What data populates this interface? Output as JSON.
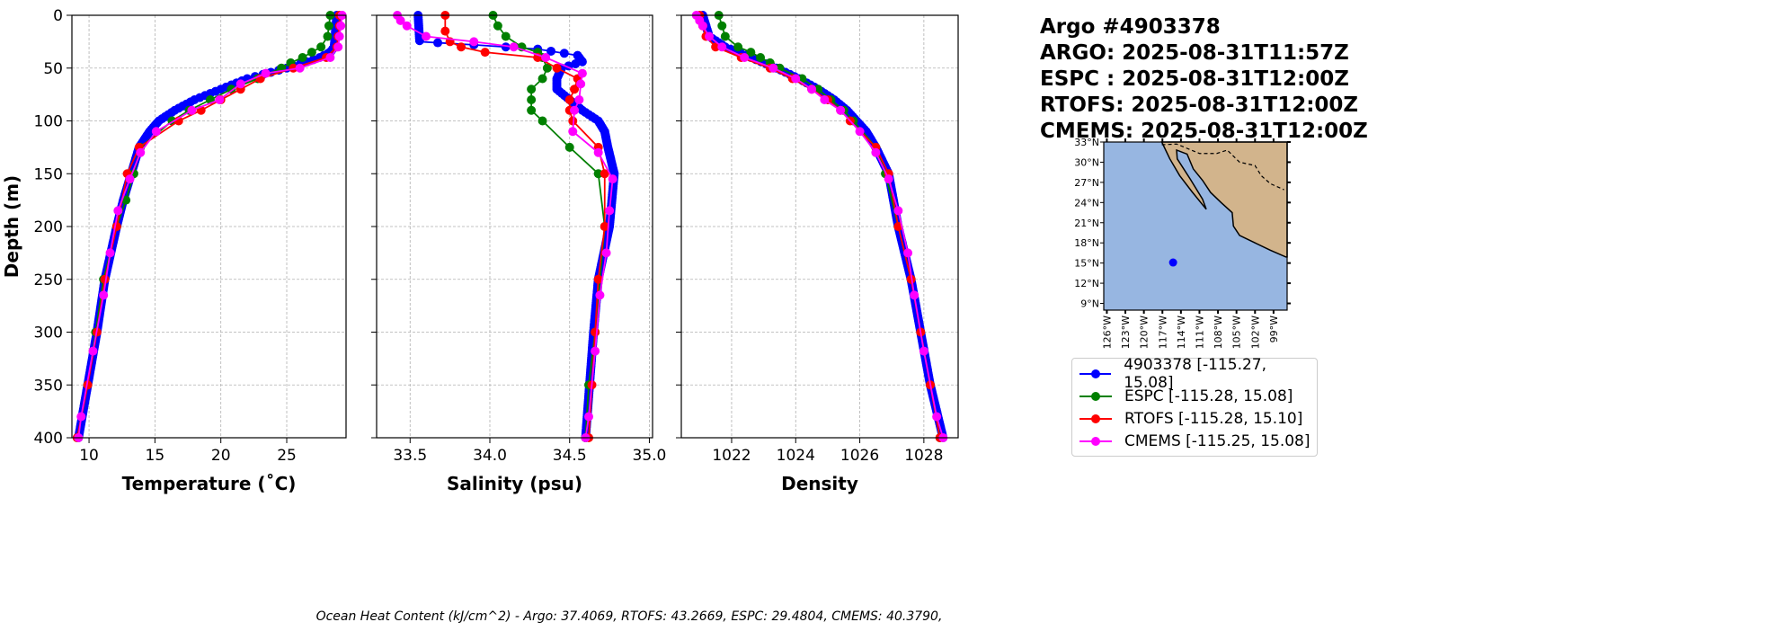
{
  "title_lines": [
    "Argo #4903378",
    "ARGO: 2025-08-31T11:57Z",
    "ESPC : 2025-08-31T12:00Z",
    "RTOFS: 2025-08-31T12:00Z",
    "CMEMS: 2025-08-31T12:00Z"
  ],
  "ohc_text": "Ocean Heat Content (kJ/cm^2) - Argo: 37.4069,  RTOFS: 43.2669,  ESPC: 29.4804,  CMEMS: 40.3790,",
  "legend": [
    {
      "label": "4903378 [-115.27, 15.08]",
      "color": "#0000ff"
    },
    {
      "label": "ESPC [-115.28, 15.08]",
      "color": "#008000"
    },
    {
      "label": "RTOFS [-115.28, 15.10]",
      "color": "#ff0000"
    },
    {
      "label": "CMEMS [-115.25, 15.08]",
      "color": "#ff00ff"
    }
  ],
  "map": {
    "lat_ticks": [
      "33°N",
      "30°N",
      "27°N",
      "24°N",
      "21°N",
      "18°N",
      "15°N",
      "12°N",
      "9°N"
    ],
    "lon_ticks": [
      "126°W",
      "123°W",
      "120°W",
      "117°W",
      "114°W",
      "111°W",
      "108°W",
      "105°W",
      "102°W",
      "99°W"
    ],
    "float_lon": -115.27,
    "float_lat": 15.08,
    "ocean_color": "#97b6e1",
    "land_color": "#d2b48c"
  },
  "chart_data": [
    {
      "type": "line",
      "xlabel": "Temperature (˚C)",
      "ylabel": "Depth (m)",
      "xlim": [
        8.7,
        29.5
      ],
      "ylim": [
        400,
        0
      ],
      "grid": true,
      "xticks": [
        "10",
        "15",
        "20",
        "25"
      ],
      "xtick_vals": [
        10,
        15,
        20,
        25
      ],
      "yticks": [
        "0",
        "50",
        "100",
        "150",
        "200",
        "250",
        "300",
        "350",
        "400"
      ],
      "series": [
        {
          "name": "Argo",
          "color": "#0000ff",
          "dense": true,
          "depth": [
            0,
            30,
            35,
            40,
            45,
            50,
            60,
            70,
            80,
            90,
            100,
            110,
            125,
            150,
            175,
            200,
            250,
            300,
            350,
            400
          ],
          "values": [
            28.8,
            28.6,
            28.3,
            27.5,
            26.3,
            25,
            22,
            20,
            18,
            16.5,
            15.3,
            14.6,
            13.8,
            13.2,
            12.6,
            12.1,
            11.2,
            10.6,
            9.9,
            9.2
          ]
        },
        {
          "name": "ESPC",
          "color": "#008000",
          "depth": [
            0,
            10,
            20,
            30,
            35,
            40,
            45,
            50,
            60,
            70,
            80,
            90,
            100,
            125,
            150,
            175,
            200,
            250,
            300,
            350,
            400
          ],
          "values": [
            28.3,
            28.2,
            28.1,
            27.6,
            26.9,
            26.2,
            25.3,
            24.6,
            22.8,
            20.8,
            19.2,
            17.6,
            16.3,
            13.9,
            13.4,
            12.8,
            12.1,
            11.1,
            10.5,
            9.9,
            9.1
          ]
        },
        {
          "name": "RTOFS",
          "color": "#ff0000",
          "depth": [
            0,
            10,
            20,
            30,
            40,
            50,
            60,
            70,
            80,
            90,
            100,
            125,
            150,
            200,
            250,
            300,
            350,
            400
          ],
          "values": [
            29,
            29,
            28.9,
            28.8,
            28,
            25.5,
            23,
            21.5,
            20,
            18.5,
            16.8,
            13.8,
            12.9,
            12.1,
            11.2,
            10.6,
            9.9,
            9.1
          ]
        },
        {
          "name": "CMEMS",
          "color": "#ff00ff",
          "depth": [
            0,
            10,
            20,
            30,
            40,
            50,
            55,
            65,
            80,
            90,
            110,
            130,
            155,
            185,
            225,
            265,
            318,
            380,
            400
          ],
          "values": [
            29.2,
            29.1,
            29,
            28.9,
            28.3,
            26,
            23.4,
            21.5,
            19.9,
            17.8,
            15.1,
            13.9,
            13.1,
            12.2,
            11.6,
            11.1,
            10.3,
            9.4,
            9.2
          ]
        }
      ]
    },
    {
      "type": "line",
      "xlabel": "Salinity (psu)",
      "xlim": [
        33.29,
        35.02
      ],
      "ylim": [
        400,
        0
      ],
      "grid": true,
      "xticks": [
        "33.5",
        "34.0",
        "34.5",
        "35.0"
      ],
      "xtick_vals": [
        33.5,
        34,
        34.5,
        35
      ],
      "series": [
        {
          "name": "Argo",
          "color": "#0000ff",
          "dense": true,
          "depth": [
            0,
            25,
            28,
            32,
            38,
            44,
            50,
            60,
            70,
            80,
            90,
            100,
            110,
            125,
            150,
            200,
            250,
            300,
            400
          ],
          "values": [
            33.55,
            33.56,
            33.9,
            34.3,
            34.55,
            34.58,
            34.45,
            34.42,
            34.42,
            34.5,
            34.58,
            34.68,
            34.72,
            34.74,
            34.78,
            34.75,
            34.68,
            34.65,
            34.6
          ]
        },
        {
          "name": "ESPC",
          "color": "#008000",
          "depth": [
            0,
            10,
            20,
            30,
            35,
            40,
            50,
            60,
            70,
            80,
            90,
            100,
            125,
            150,
            200,
            300,
            350,
            400
          ],
          "values": [
            34.02,
            34.05,
            34.1,
            34.2,
            34.3,
            34.33,
            34.36,
            34.33,
            34.26,
            34.26,
            34.26,
            34.33,
            34.5,
            34.68,
            34.72,
            34.66,
            34.62,
            34.6
          ]
        },
        {
          "name": "RTOFS",
          "color": "#ff0000",
          "depth": [
            0,
            15,
            25,
            30,
            35,
            40,
            50,
            60,
            70,
            80,
            90,
            100,
            125,
            150,
            200,
            250,
            300,
            350,
            400
          ],
          "values": [
            33.72,
            33.72,
            33.75,
            33.82,
            33.97,
            34.3,
            34.42,
            34.55,
            34.53,
            34.5,
            34.5,
            34.52,
            34.68,
            34.72,
            34.72,
            34.68,
            34.66,
            34.64,
            34.62
          ]
        },
        {
          "name": "CMEMS",
          "color": "#ff00ff",
          "depth": [
            0,
            5,
            10,
            20,
            25,
            30,
            40,
            55,
            65,
            80,
            90,
            110,
            130,
            155,
            185,
            225,
            265,
            318,
            380,
            400
          ],
          "values": [
            33.42,
            33.44,
            33.48,
            33.6,
            33.9,
            34.15,
            34.35,
            34.58,
            34.57,
            34.56,
            34.53,
            34.52,
            34.68,
            34.77,
            34.75,
            34.73,
            34.69,
            34.66,
            34.62,
            34.6
          ]
        }
      ]
    },
    {
      "type": "line",
      "xlabel": "Density",
      "xlim": [
        1020.43,
        1029.07
      ],
      "ylim": [
        400,
        0
      ],
      "grid": true,
      "xticks": [
        "1022",
        "1024",
        "1026",
        "1028"
      ],
      "xtick_vals": [
        1022,
        1024,
        1026,
        1028
      ],
      "series": [
        {
          "name": "Argo",
          "color": "#0000ff",
          "dense": true,
          "depth": [
            0,
            20,
            30,
            40,
            50,
            60,
            70,
            80,
            90,
            100,
            110,
            125,
            150,
            200,
            250,
            300,
            350,
            400
          ],
          "values": [
            1021.1,
            1021.3,
            1021.8,
            1022.6,
            1023.4,
            1024.1,
            1024.7,
            1025.2,
            1025.6,
            1025.9,
            1026.2,
            1026.5,
            1026.9,
            1027.2,
            1027.6,
            1027.9,
            1028.2,
            1028.6
          ]
        },
        {
          "name": "ESPC",
          "color": "#008000",
          "depth": [
            0,
            10,
            20,
            30,
            35,
            40,
            45,
            50,
            60,
            70,
            80,
            90,
            100,
            125,
            150,
            200,
            250,
            300,
            350,
            400
          ],
          "values": [
            1021.6,
            1021.7,
            1021.8,
            1022.2,
            1022.6,
            1022.9,
            1023.2,
            1023.5,
            1024.2,
            1024.7,
            1025.1,
            1025.5,
            1025.8,
            1026.5,
            1026.8,
            1027.2,
            1027.6,
            1027.9,
            1028.2,
            1028.5
          ]
        },
        {
          "name": "RTOFS",
          "color": "#ff0000",
          "depth": [
            0,
            10,
            20,
            30,
            40,
            50,
            60,
            70,
            80,
            90,
            100,
            125,
            150,
            200,
            250,
            300,
            350,
            400
          ],
          "values": [
            1021,
            1021.1,
            1021.2,
            1021.5,
            1022.3,
            1023.2,
            1023.9,
            1024.5,
            1025,
            1025.4,
            1025.7,
            1026.5,
            1026.9,
            1027.2,
            1027.6,
            1027.9,
            1028.2,
            1028.5
          ]
        },
        {
          "name": "CMEMS",
          "color": "#ff00ff",
          "depth": [
            0,
            5,
            10,
            20,
            30,
            40,
            50,
            60,
            70,
            80,
            90,
            110,
            130,
            155,
            185,
            225,
            265,
            318,
            380,
            400
          ],
          "values": [
            1020.9,
            1021,
            1021.1,
            1021.3,
            1021.7,
            1022.4,
            1023.3,
            1024,
            1024.5,
            1024.9,
            1025.4,
            1026,
            1026.5,
            1026.9,
            1027.2,
            1027.5,
            1027.7,
            1028,
            1028.4,
            1028.6
          ]
        }
      ]
    }
  ]
}
